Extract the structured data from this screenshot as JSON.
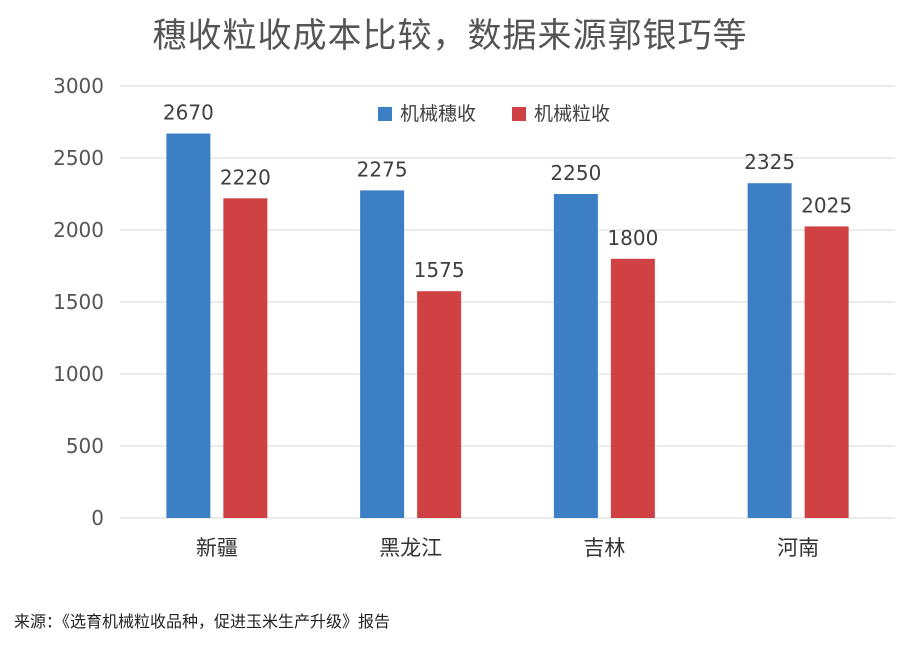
{
  "chart_data": {
    "type": "bar",
    "title": "穗收粒收成本比较，数据来源郭银巧等",
    "categories": [
      "新疆",
      "黑龙江",
      "吉林",
      "河南"
    ],
    "series": [
      {
        "name": "机械穗收",
        "color": "#3d7fc4",
        "values": [
          2670,
          2275,
          2250,
          2325
        ]
      },
      {
        "name": "机械粒收",
        "color": "#cf4142",
        "values": [
          2220,
          1575,
          1800,
          2025
        ]
      }
    ],
    "yticks": [
      0,
      500,
      1000,
      1500,
      2000,
      2500,
      3000
    ],
    "ylim": [
      0,
      3000
    ],
    "grid": true,
    "legend": "top-center",
    "data_labels": true
  },
  "source_note": "来源：《选育机械粒收品种，促进玉米生产升级》报告"
}
